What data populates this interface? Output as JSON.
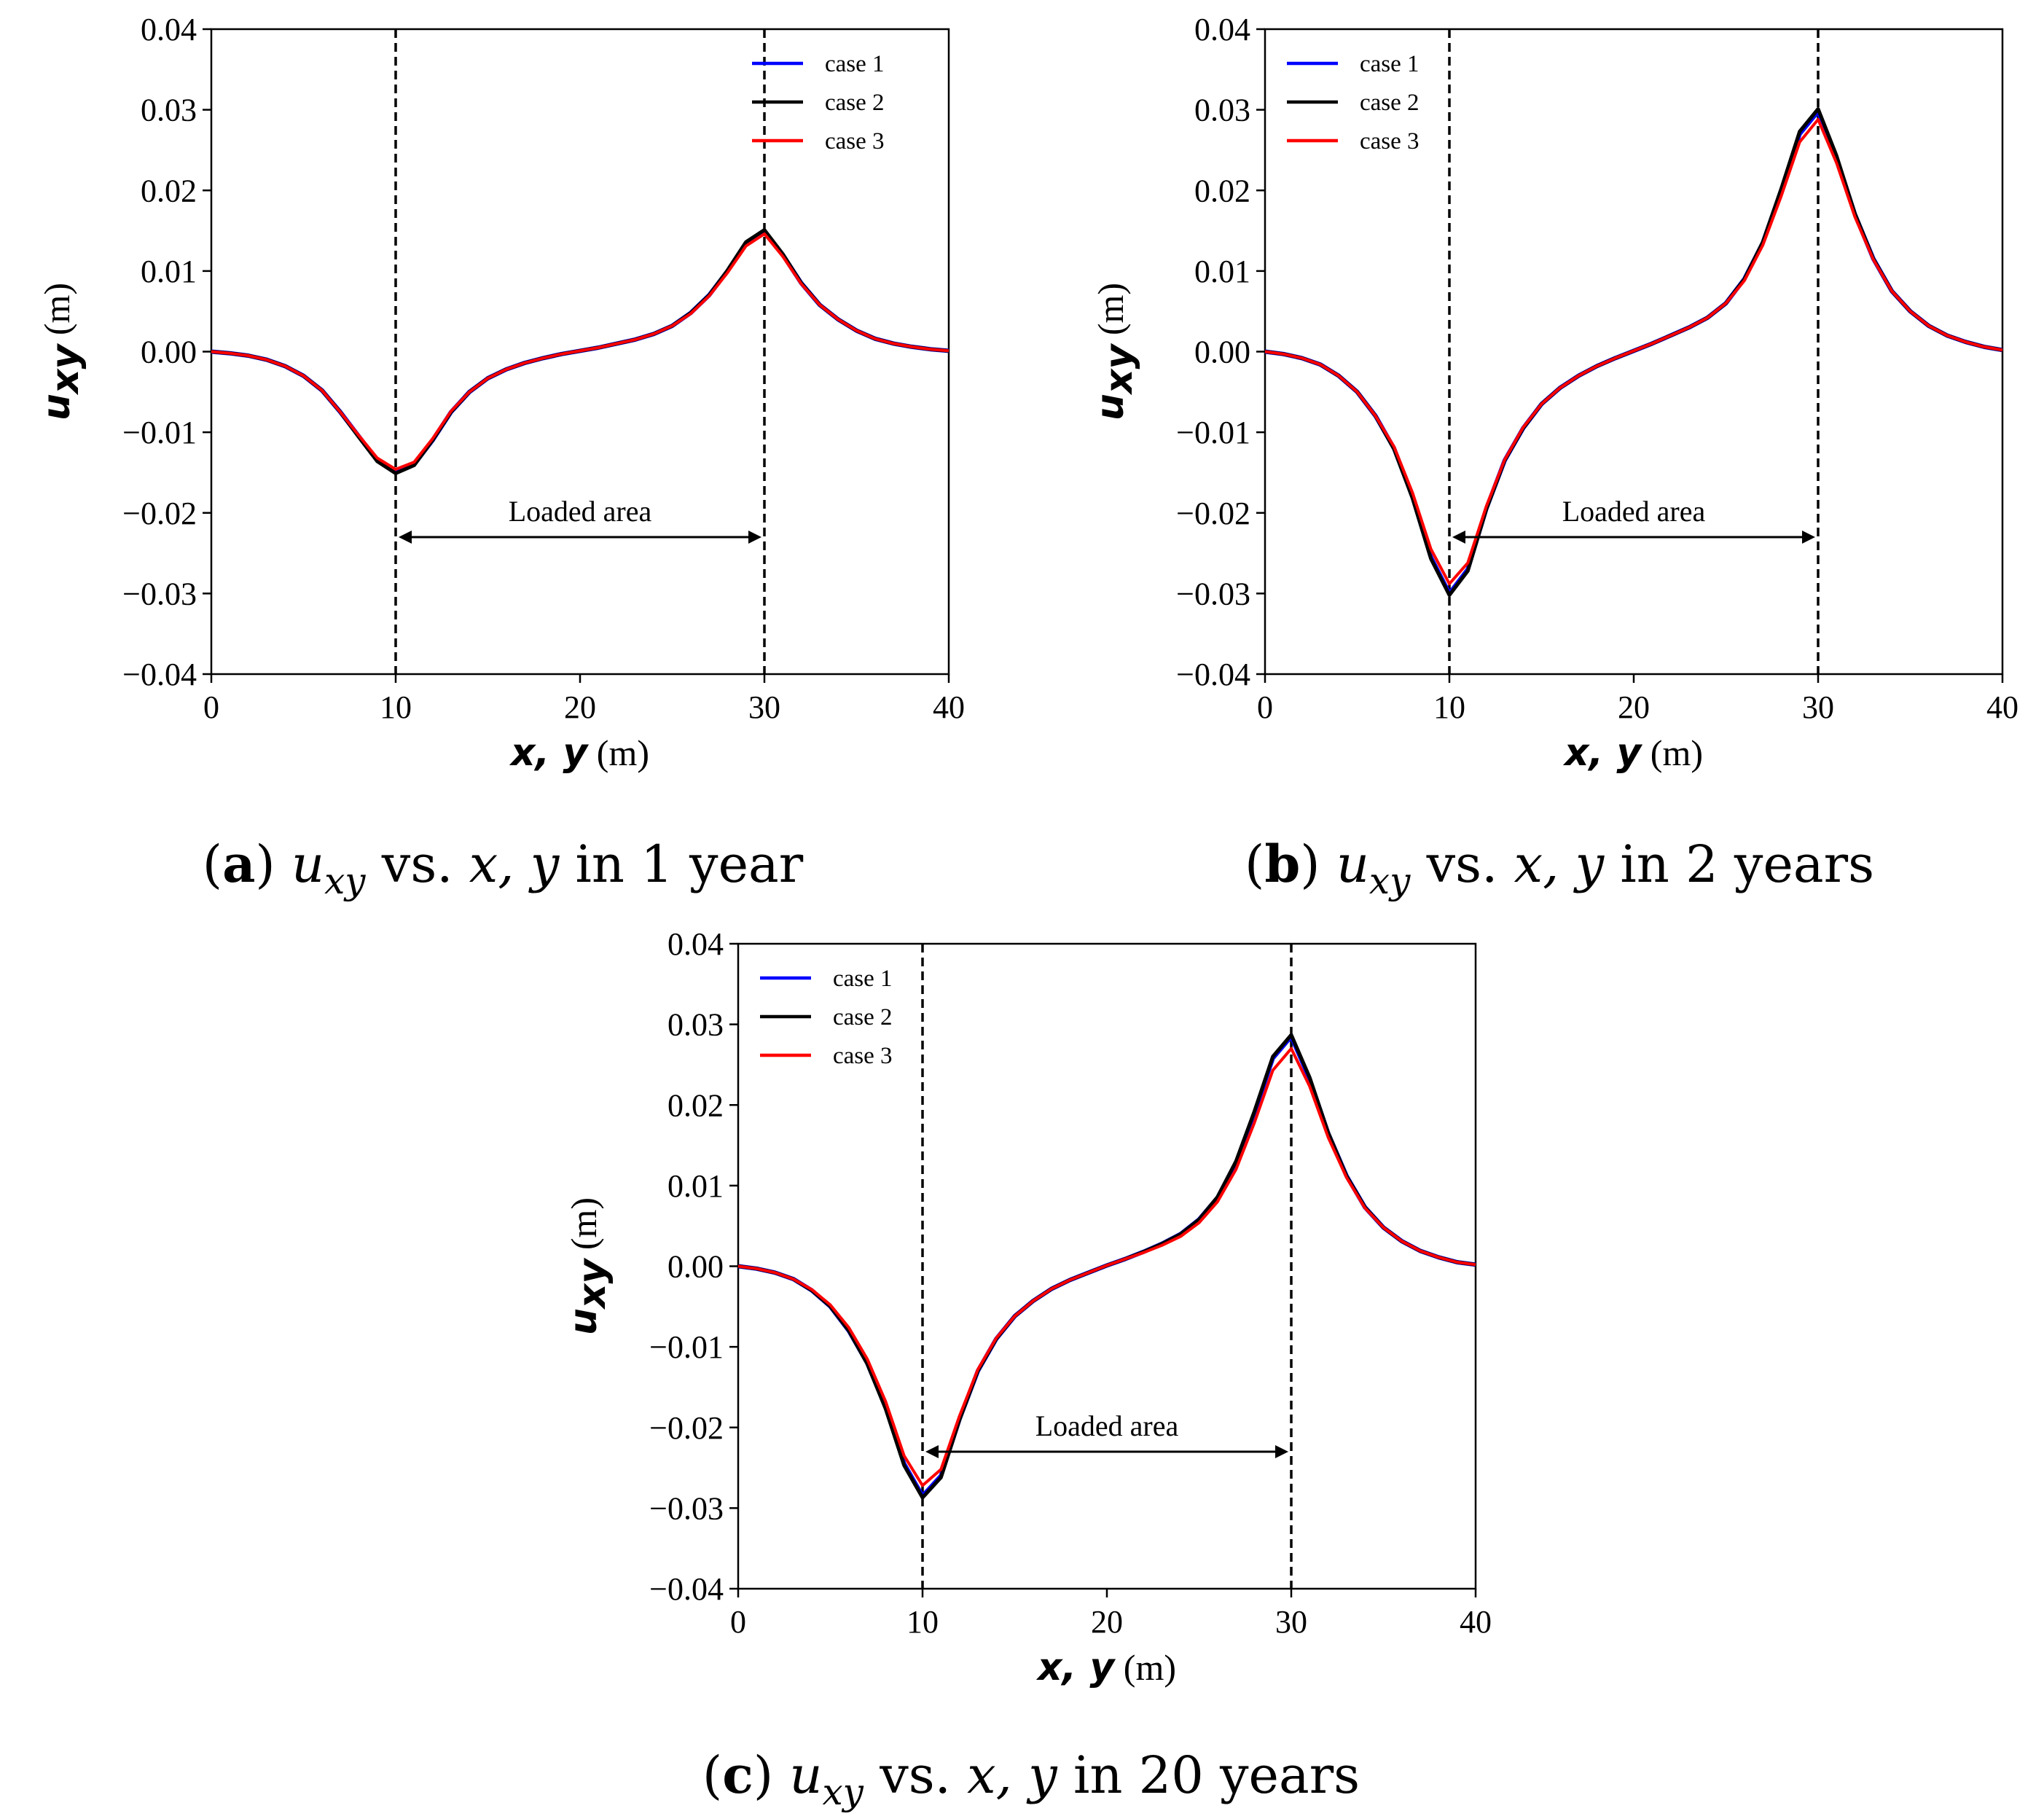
{
  "chart_data": [
    {
      "type": "line",
      "panel": "a",
      "xlabel_var": "x, y",
      "xlabel_unit": "(m)",
      "ylabel_var": "u",
      "ylabel_sub": "xy",
      "ylabel_unit": "(m)",
      "xlim": [
        0,
        40
      ],
      "ylim": [
        -0.04,
        0.04
      ],
      "xticks": [
        "0",
        "10",
        "20",
        "30",
        "40"
      ],
      "yticks": [
        "0.04",
        "0.03",
        "0.02",
        "0.01",
        "0.00",
        "−0.01",
        "−0.02",
        "−0.03",
        "−0.04"
      ],
      "legend_position": "top-right",
      "vlines": [
        10,
        30
      ],
      "annotation": {
        "text": "Loaded area",
        "from": 10,
        "to": 30,
        "y": -0.023
      },
      "caption": {
        "letter": "a",
        "var": "u",
        "sub": "xy",
        "mid": "vs.",
        "vars": "x, y",
        "tail": "in 1 year"
      },
      "x": [
        0,
        1,
        2,
        3,
        4,
        5,
        6,
        7,
        8,
        9,
        10,
        11,
        12,
        13,
        14,
        15,
        16,
        17,
        18,
        19,
        20,
        21,
        22,
        23,
        24,
        25,
        26,
        27,
        28,
        29,
        30,
        31,
        32,
        33,
        34,
        35,
        36,
        37,
        38,
        39,
        40
      ],
      "series": [
        {
          "name": "case 1",
          "color": "#0000ff",
          "values": [
            0,
            -0.0002,
            -0.0005,
            -0.001,
            -0.0018,
            -0.003,
            -0.0048,
            -0.0075,
            -0.0105,
            -0.0135,
            -0.015,
            -0.014,
            -0.011,
            -0.0075,
            -0.005,
            -0.0033,
            -0.0022,
            -0.0014,
            -0.0008,
            -0.0003,
            0.0001,
            0.0005,
            0.001,
            0.0015,
            0.0022,
            0.0032,
            0.0048,
            0.007,
            0.01,
            0.0135,
            0.015,
            0.012,
            0.0085,
            0.0058,
            0.004,
            0.0026,
            0.0016,
            0.001,
            0.0006,
            0.0003,
            0.0001
          ]
        },
        {
          "name": "case 2",
          "color": "#000000",
          "values": [
            0,
            -0.0002,
            -0.0005,
            -0.001,
            -0.0018,
            -0.003,
            -0.0048,
            -0.0075,
            -0.0106,
            -0.0136,
            -0.0151,
            -0.0141,
            -0.011,
            -0.0075,
            -0.005,
            -0.0033,
            -0.0022,
            -0.0014,
            -0.0008,
            -0.0003,
            0.0001,
            0.0005,
            0.001,
            0.0015,
            0.0022,
            0.0032,
            0.0048,
            0.007,
            0.0101,
            0.0136,
            0.0151,
            0.0121,
            0.0085,
            0.0058,
            0.004,
            0.0026,
            0.0016,
            0.001,
            0.0006,
            0.0003,
            0.0001
          ]
        },
        {
          "name": "case 3",
          "color": "#ff0000",
          "values": [
            0,
            -0.0002,
            -0.0005,
            -0.001,
            -0.0018,
            -0.003,
            -0.0048,
            -0.0075,
            -0.0104,
            -0.0132,
            -0.0146,
            -0.0137,
            -0.0108,
            -0.0074,
            -0.005,
            -0.0033,
            -0.0022,
            -0.0014,
            -0.0008,
            -0.0003,
            0.0001,
            0.0005,
            0.001,
            0.0015,
            0.0022,
            0.0032,
            0.0047,
            0.0069,
            0.0098,
            0.0131,
            0.0146,
            0.0118,
            0.0084,
            0.0058,
            0.004,
            0.0026,
            0.0016,
            0.001,
            0.0006,
            0.0003,
            0.0001
          ]
        }
      ]
    },
    {
      "type": "line",
      "panel": "b",
      "xlabel_var": "x, y",
      "xlabel_unit": "(m)",
      "ylabel_var": "u",
      "ylabel_sub": "xy",
      "ylabel_unit": "(m)",
      "xlim": [
        0,
        40
      ],
      "ylim": [
        -0.04,
        0.04
      ],
      "xticks": [
        "0",
        "10",
        "20",
        "30",
        "40"
      ],
      "yticks": [
        "0.04",
        "0.03",
        "0.02",
        "0.01",
        "0.00",
        "−0.01",
        "−0.02",
        "−0.03",
        "−0.04"
      ],
      "legend_position": "top-left",
      "vlines": [
        10,
        30
      ],
      "annotation": {
        "text": "Loaded area",
        "from": 10,
        "to": 30,
        "y": -0.023
      },
      "caption": {
        "letter": "b",
        "var": "u",
        "sub": "xy",
        "mid": "vs.",
        "vars": "x, y",
        "tail": "in 2 years"
      },
      "x": [
        0,
        1,
        2,
        3,
        4,
        5,
        6,
        7,
        8,
        9,
        10,
        11,
        12,
        13,
        14,
        15,
        16,
        17,
        18,
        19,
        20,
        21,
        22,
        23,
        24,
        25,
        26,
        27,
        28,
        29,
        30,
        31,
        32,
        33,
        34,
        35,
        36,
        37,
        38,
        39,
        40
      ],
      "series": [
        {
          "name": "case 1",
          "color": "#0000ff",
          "values": [
            0,
            -0.0003,
            -0.0008,
            -0.0016,
            -0.003,
            -0.005,
            -0.008,
            -0.012,
            -0.018,
            -0.0255,
            -0.03,
            -0.027,
            -0.0195,
            -0.0135,
            -0.0095,
            -0.0065,
            -0.0045,
            -0.003,
            -0.0018,
            -0.0008,
            0.0001,
            0.001,
            0.002,
            0.003,
            0.0042,
            0.006,
            0.009,
            0.0135,
            0.02,
            0.027,
            0.0298,
            0.024,
            0.017,
            0.0115,
            0.0075,
            0.005,
            0.0032,
            0.002,
            0.0012,
            0.0006,
            0.0002
          ]
        },
        {
          "name": "case 2",
          "color": "#000000",
          "values": [
            0,
            -0.0003,
            -0.0008,
            -0.0016,
            -0.003,
            -0.005,
            -0.008,
            -0.0121,
            -0.0182,
            -0.0257,
            -0.0302,
            -0.0272,
            -0.0196,
            -0.0135,
            -0.0095,
            -0.0065,
            -0.0045,
            -0.003,
            -0.0018,
            -0.0008,
            0.0001,
            0.001,
            0.002,
            0.003,
            0.0042,
            0.006,
            0.009,
            0.0136,
            0.0202,
            0.0273,
            0.0301,
            0.0243,
            0.0171,
            0.0115,
            0.0075,
            0.005,
            0.0032,
            0.002,
            0.0012,
            0.0006,
            0.0002
          ]
        },
        {
          "name": "case 3",
          "color": "#ff0000",
          "values": [
            0,
            -0.0003,
            -0.0008,
            -0.0016,
            -0.003,
            -0.005,
            -0.008,
            -0.0118,
            -0.0175,
            -0.0245,
            -0.0288,
            -0.0262,
            -0.0192,
            -0.0134,
            -0.0094,
            -0.0065,
            -0.0045,
            -0.003,
            -0.0018,
            -0.0008,
            0.0001,
            0.001,
            0.002,
            0.003,
            0.0042,
            0.006,
            0.0088,
            0.0132,
            0.0193,
            0.026,
            0.0288,
            0.0234,
            0.0167,
            0.0114,
            0.0075,
            0.005,
            0.0032,
            0.002,
            0.0012,
            0.0006,
            0.0002
          ]
        }
      ]
    },
    {
      "type": "line",
      "panel": "c",
      "xlabel_var": "x, y",
      "xlabel_unit": "(m)",
      "ylabel_var": "u",
      "ylabel_sub": "xy",
      "ylabel_unit": "(m)",
      "xlim": [
        0,
        40
      ],
      "ylim": [
        -0.04,
        0.04
      ],
      "xticks": [
        "0",
        "10",
        "20",
        "30",
        "40"
      ],
      "yticks": [
        "0.04",
        "0.03",
        "0.02",
        "0.01",
        "0.00",
        "−0.01",
        "−0.02",
        "−0.03",
        "−0.04"
      ],
      "legend_position": "top-left",
      "vlines": [
        10,
        30
      ],
      "annotation": {
        "text": "Loaded area",
        "from": 10,
        "to": 30,
        "y": -0.023
      },
      "caption": {
        "letter": "c",
        "var": "u",
        "sub": "xy",
        "mid": "vs.",
        "vars": "x, y",
        "tail": "in 20 years"
      },
      "x": [
        0,
        1,
        2,
        3,
        4,
        5,
        6,
        7,
        8,
        9,
        10,
        11,
        12,
        13,
        14,
        15,
        16,
        17,
        18,
        19,
        20,
        21,
        22,
        23,
        24,
        25,
        26,
        27,
        28,
        29,
        30,
        31,
        32,
        33,
        34,
        35,
        36,
        37,
        38,
        39,
        40
      ],
      "series": [
        {
          "name": "case 1",
          "color": "#0000ff",
          "values": [
            0,
            -0.0003,
            -0.0008,
            -0.0016,
            -0.003,
            -0.005,
            -0.008,
            -0.012,
            -0.0175,
            -0.0245,
            -0.0285,
            -0.026,
            -0.019,
            -0.013,
            -0.009,
            -0.0062,
            -0.0043,
            -0.0028,
            -0.0017,
            -0.0008,
            0.0001,
            0.0009,
            0.0018,
            0.0028,
            0.004,
            0.0058,
            0.0085,
            0.0128,
            0.019,
            0.0258,
            0.0285,
            0.0232,
            0.0165,
            0.0112,
            0.0073,
            0.0048,
            0.0031,
            0.0019,
            0.0011,
            0.0005,
            0.0002
          ]
        },
        {
          "name": "case 2",
          "color": "#000000",
          "values": [
            0,
            -0.0003,
            -0.0008,
            -0.0016,
            -0.003,
            -0.005,
            -0.008,
            -0.0121,
            -0.0177,
            -0.0247,
            -0.0287,
            -0.0262,
            -0.0191,
            -0.013,
            -0.009,
            -0.0062,
            -0.0043,
            -0.0028,
            -0.0017,
            -0.0008,
            0.0001,
            0.0009,
            0.0018,
            0.0028,
            0.004,
            0.0058,
            0.0086,
            0.013,
            0.0192,
            0.026,
            0.0287,
            0.0234,
            0.0166,
            0.0112,
            0.0073,
            0.0048,
            0.0031,
            0.0019,
            0.0011,
            0.0005,
            0.0002
          ]
        },
        {
          "name": "case 3",
          "color": "#ff0000",
          "values": [
            0,
            -0.0003,
            -0.0008,
            -0.0016,
            -0.0029,
            -0.0048,
            -0.0076,
            -0.0115,
            -0.0168,
            -0.0235,
            -0.0272,
            -0.0252,
            -0.0186,
            -0.0128,
            -0.0089,
            -0.0062,
            -0.0043,
            -0.0028,
            -0.0017,
            -0.0008,
            0.0001,
            0.0009,
            0.0017,
            0.0026,
            0.0037,
            0.0054,
            0.008,
            0.012,
            0.0178,
            0.0243,
            0.027,
            0.0223,
            0.016,
            0.011,
            0.0072,
            0.0048,
            0.0031,
            0.0019,
            0.0011,
            0.0005,
            0.0002
          ]
        }
      ]
    }
  ]
}
